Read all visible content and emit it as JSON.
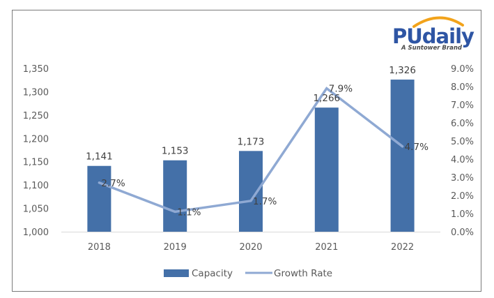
{
  "logo": {
    "name": "PUdaily",
    "tagline": "A Suntower Brand"
  },
  "colors": {
    "bar": "#4470A8",
    "line": "#8FA9D3",
    "axis_text": "#595959",
    "label_text": "#404040",
    "frame": "#7a7a7a",
    "logo_blue": "#2e55a4",
    "logo_arc": "#f2a31b"
  },
  "chart_data": {
    "type": "bar",
    "title": "",
    "xlabel": "",
    "ylabel": "",
    "categories": [
      "2018",
      "2019",
      "2020",
      "2021",
      "2022"
    ],
    "series": [
      {
        "name": "Capacity",
        "type": "bar",
        "axis": "left",
        "values": [
          1141,
          1153,
          1173,
          1266,
          1326
        ],
        "labels": [
          "1,141",
          "1,153",
          "1,173",
          "1,266",
          "1,326"
        ]
      },
      {
        "name": "Growth Rate",
        "type": "line",
        "axis": "right",
        "values": [
          2.7,
          1.1,
          1.7,
          7.9,
          4.7
        ],
        "labels": [
          "2.7%",
          "1.1%",
          "1.7%",
          "7.9%",
          "4.7%"
        ]
      }
    ],
    "ylim": [
      1000,
      1350
    ],
    "y_ticks": [
      "1,000",
      "1,050",
      "1,100",
      "1,150",
      "1,200",
      "1,250",
      "1,300",
      "1,350"
    ],
    "y_tick_values": [
      1000,
      1050,
      1100,
      1150,
      1200,
      1250,
      1300,
      1350
    ],
    "y2lim": [
      0,
      9
    ],
    "y2_ticks": [
      "0.0%",
      "1.0%",
      "2.0%",
      "3.0%",
      "4.0%",
      "5.0%",
      "6.0%",
      "7.0%",
      "8.0%",
      "9.0%"
    ],
    "y2_tick_values": [
      0,
      1,
      2,
      3,
      4,
      5,
      6,
      7,
      8,
      9
    ],
    "grid": false,
    "legend": {
      "position": "bottom",
      "entries": [
        "Capacity",
        "Growth Rate"
      ]
    }
  }
}
